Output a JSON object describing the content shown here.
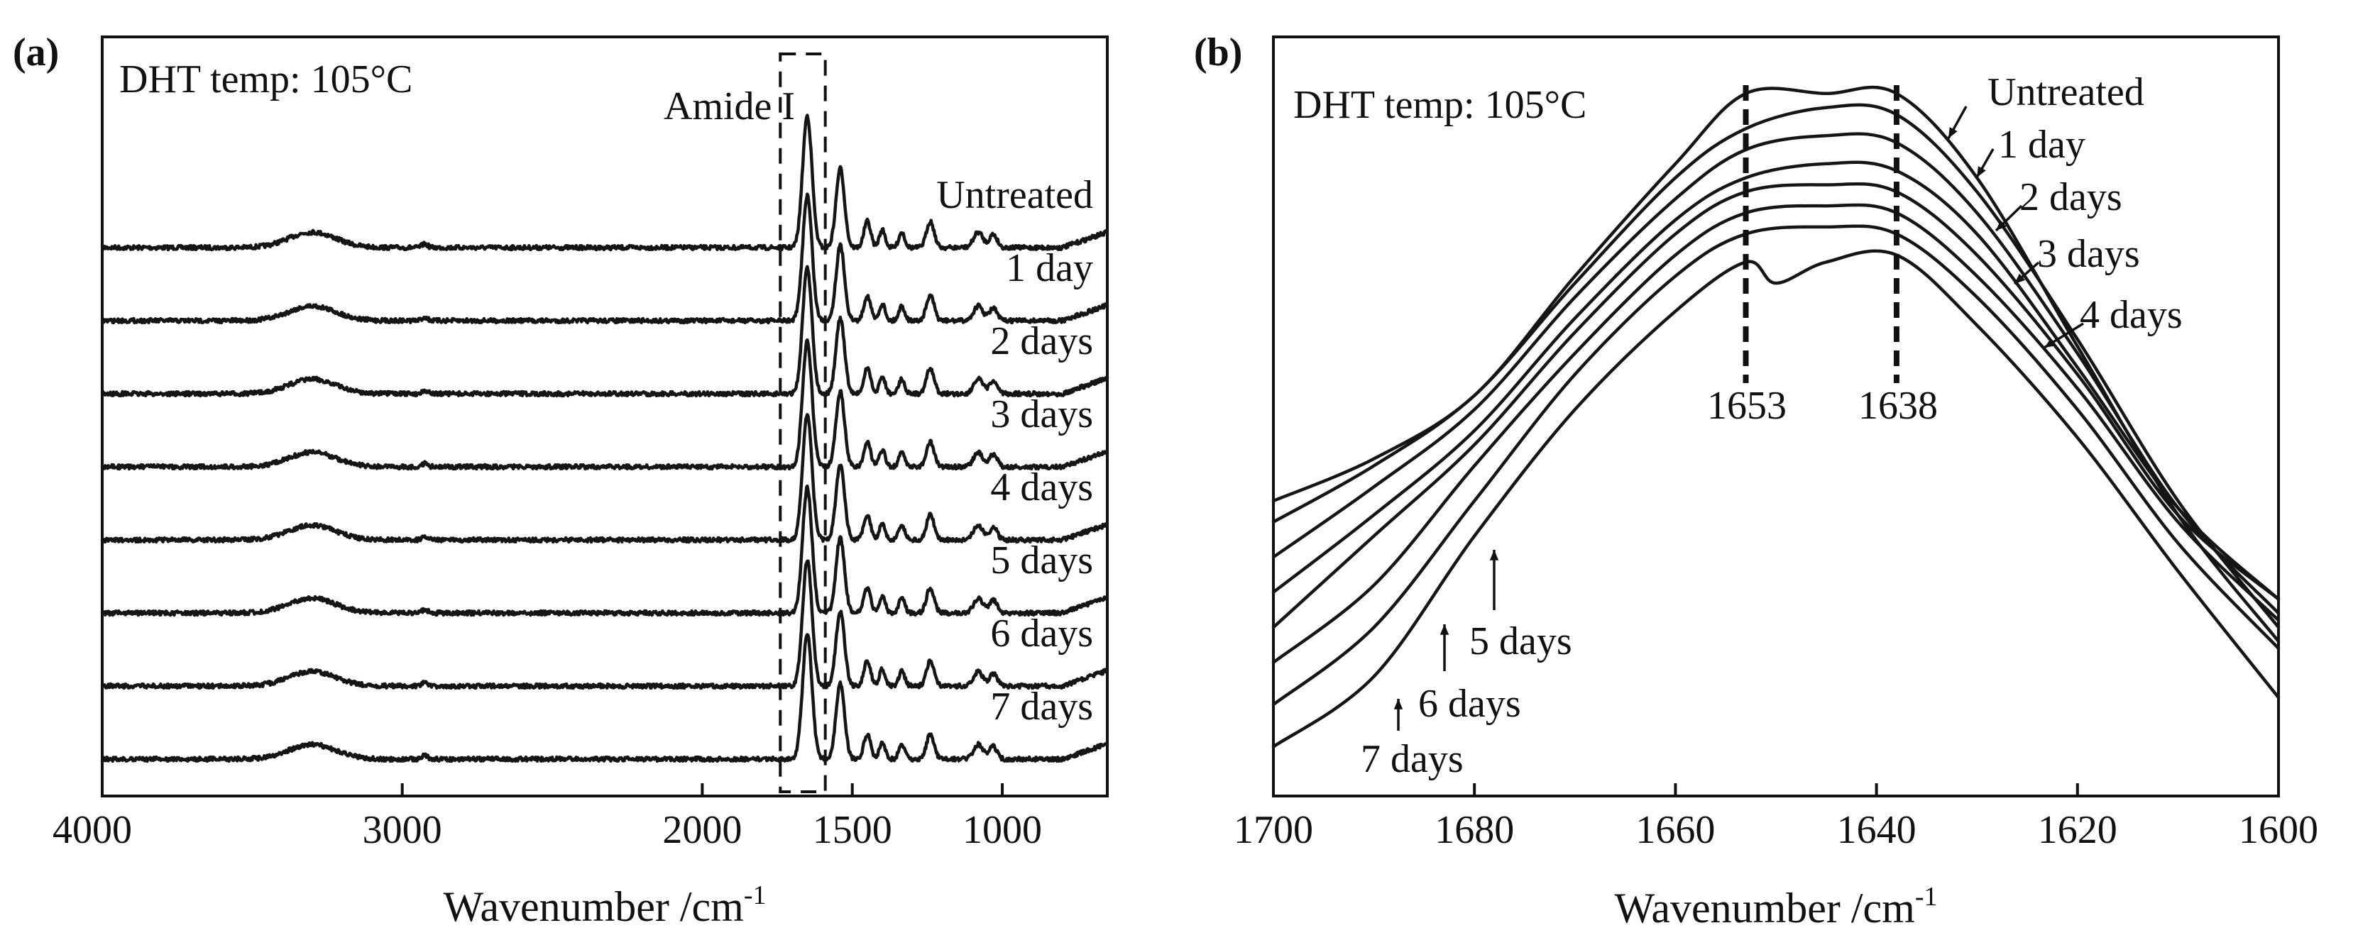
{
  "chart_data": [
    {
      "panel_label": "(a)",
      "type": "line",
      "annotation": "DHT temp: 105°C",
      "region_label": "Amide I",
      "xlabel_text": "Wavenumber /cm",
      "xlabel_sup": "-1",
      "xlim": [
        4000,
        650
      ],
      "x_reversed": true,
      "xticks": [
        4000,
        3000,
        2000,
        1500,
        1000
      ],
      "amide_box_x": [
        1740,
        1590
      ],
      "grid": false,
      "legend": "none",
      "series": [
        {
          "name": "Untreated",
          "offset": 7
        },
        {
          "name": "1 day",
          "offset": 6
        },
        {
          "name": "2 days",
          "offset": 5
        },
        {
          "name": "3 days",
          "offset": 4
        },
        {
          "name": "4 days",
          "offset": 3
        },
        {
          "name": "5 days",
          "offset": 2
        },
        {
          "name": "6 days",
          "offset": 1
        },
        {
          "name": "7 days",
          "offset": 0
        }
      ],
      "peaks": [
        {
          "x": 3300,
          "height": 0.35
        },
        {
          "x": 2925,
          "height": 0.08
        },
        {
          "x": 1650,
          "height": 3.0
        },
        {
          "x": 1540,
          "height": 1.8
        },
        {
          "x": 1450,
          "height": 0.6
        },
        {
          "x": 1400,
          "height": 0.4
        },
        {
          "x": 1335,
          "height": 0.35
        },
        {
          "x": 1240,
          "height": 0.6
        },
        {
          "x": 1080,
          "height": 0.35
        },
        {
          "x": 1030,
          "height": 0.3
        }
      ]
    },
    {
      "panel_label": "(b)",
      "type": "line",
      "annotation": "DHT temp: 105°C",
      "xlabel_text": "Wavenumber /cm",
      "xlabel_sup": "-1",
      "xlim": [
        1700,
        1600
      ],
      "x_reversed": true,
      "xticks": [
        1700,
        1680,
        1660,
        1640,
        1620,
        1600
      ],
      "peak_markers": [
        1653,
        1638
      ],
      "grid": false,
      "legend": "none",
      "series": [
        {
          "name": "Untreated",
          "x": [
            1700,
            1690,
            1680,
            1670,
            1660,
            1653,
            1645,
            1638,
            1630,
            1620,
            1610,
            1600
          ],
          "y": [
            0.4,
            0.46,
            0.55,
            0.72,
            0.88,
            0.98,
            0.98,
            0.98,
            0.86,
            0.62,
            0.38,
            0.2
          ]
        },
        {
          "name": "1 day",
          "x": [
            1700,
            1690,
            1680,
            1670,
            1660,
            1653,
            1645,
            1638,
            1630,
            1620,
            1610,
            1600
          ],
          "y": [
            0.37,
            0.45,
            0.55,
            0.71,
            0.86,
            0.93,
            0.96,
            0.95,
            0.84,
            0.63,
            0.4,
            0.22
          ]
        },
        {
          "name": "2 days",
          "x": [
            1700,
            1690,
            1680,
            1670,
            1660,
            1653,
            1645,
            1638,
            1630,
            1620,
            1610,
            1600
          ],
          "y": [
            0.32,
            0.42,
            0.53,
            0.69,
            0.83,
            0.9,
            0.92,
            0.91,
            0.81,
            0.61,
            0.39,
            0.24
          ]
        },
        {
          "name": "3 days",
          "x": [
            1700,
            1690,
            1680,
            1670,
            1660,
            1653,
            1645,
            1638,
            1630,
            1620,
            1610,
            1600
          ],
          "y": [
            0.27,
            0.38,
            0.5,
            0.66,
            0.8,
            0.86,
            0.88,
            0.87,
            0.78,
            0.59,
            0.39,
            0.26
          ]
        },
        {
          "name": "4 days",
          "x": [
            1700,
            1690,
            1680,
            1670,
            1660,
            1653,
            1645,
            1638,
            1630,
            1620,
            1610,
            1600
          ],
          "y": [
            0.22,
            0.35,
            0.48,
            0.64,
            0.78,
            0.84,
            0.85,
            0.84,
            0.75,
            0.58,
            0.38,
            0.26
          ]
        },
        {
          "name": "5 days",
          "x": [
            1700,
            1690,
            1680,
            1670,
            1660,
            1653,
            1645,
            1638,
            1630,
            1620,
            1610,
            1600
          ],
          "y": [
            0.17,
            0.28,
            0.45,
            0.61,
            0.75,
            0.81,
            0.82,
            0.81,
            0.72,
            0.56,
            0.37,
            0.23
          ]
        },
        {
          "name": "6 days",
          "x": [
            1700,
            1690,
            1680,
            1670,
            1660,
            1653,
            1645,
            1638,
            1630,
            1620,
            1610,
            1600
          ],
          "y": [
            0.11,
            0.22,
            0.4,
            0.58,
            0.72,
            0.78,
            0.79,
            0.78,
            0.69,
            0.53,
            0.34,
            0.19
          ]
        },
        {
          "name": "7 days",
          "x": [
            1700,
            1690,
            1680,
            1670,
            1660,
            1653,
            1650,
            1645,
            1638,
            1630,
            1620,
            1610,
            1600
          ],
          "y": [
            0.05,
            0.15,
            0.35,
            0.53,
            0.67,
            0.74,
            0.71,
            0.74,
            0.75,
            0.65,
            0.49,
            0.3,
            0.12
          ]
        }
      ],
      "labels": [
        {
          "text": "Untreated"
        },
        {
          "text": "1 day"
        },
        {
          "text": "2 days"
        },
        {
          "text": "3 days"
        },
        {
          "text": "4 days"
        },
        {
          "text": "5 days"
        },
        {
          "text": "6 days"
        },
        {
          "text": "7 days"
        },
        {
          "text": "1653"
        },
        {
          "text": "1638"
        }
      ]
    }
  ]
}
